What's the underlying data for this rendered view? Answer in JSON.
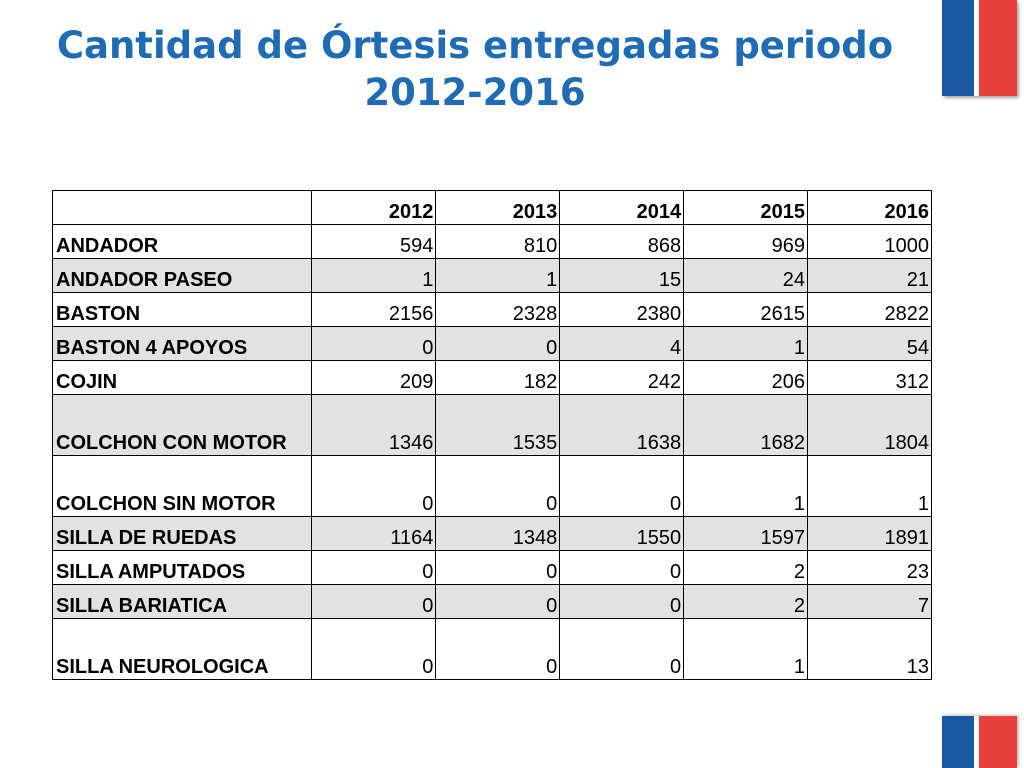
{
  "title": {
    "line1": "Cantidad de Órtesis entregadas periodo",
    "line2": "2012-2016"
  },
  "colors": {
    "title": "#1f6cb4",
    "flag_blue": "#1a57a3",
    "flag_red": "#e8413c",
    "row_shade": "#e2e2e2"
  },
  "table": {
    "corner": "",
    "columns": [
      "2012",
      "2013",
      "2014",
      "2015",
      "2016"
    ],
    "rows": [
      {
        "label": "ANDADOR",
        "values": [
          "594",
          "810",
          "868",
          "969",
          "1000"
        ]
      },
      {
        "label": "ANDADOR PASEO",
        "values": [
          "1",
          "1",
          "15",
          "24",
          "21"
        ]
      },
      {
        "label": "BASTON",
        "values": [
          "2156",
          "2328",
          "2380",
          "2615",
          "2822"
        ]
      },
      {
        "label": "BASTON 4 APOYOS",
        "values": [
          "0",
          "0",
          "4",
          "1",
          "54"
        ]
      },
      {
        "label": "COJIN",
        "values": [
          "209",
          "182",
          "242",
          "206",
          "312"
        ]
      },
      {
        "label": "COLCHON CON MOTOR",
        "values": [
          "1346",
          "1535",
          "1638",
          "1682",
          "1804"
        ]
      },
      {
        "label": "COLCHON SIN MOTOR",
        "values": [
          "0",
          "0",
          "0",
          "1",
          "1"
        ]
      },
      {
        "label": "SILLA DE RUEDAS",
        "values": [
          "1164",
          "1348",
          "1550",
          "1597",
          "1891"
        ]
      },
      {
        "label": "SILLA AMPUTADOS",
        "values": [
          "0",
          "0",
          "0",
          "2",
          "23"
        ]
      },
      {
        "label": "SILLA BARIATICA",
        "values": [
          "0",
          "0",
          "0",
          "2",
          "7"
        ]
      },
      {
        "label": "SILLA NEUROLOGICA",
        "values": [
          "0",
          "0",
          "0",
          "1",
          "13"
        ]
      }
    ]
  }
}
